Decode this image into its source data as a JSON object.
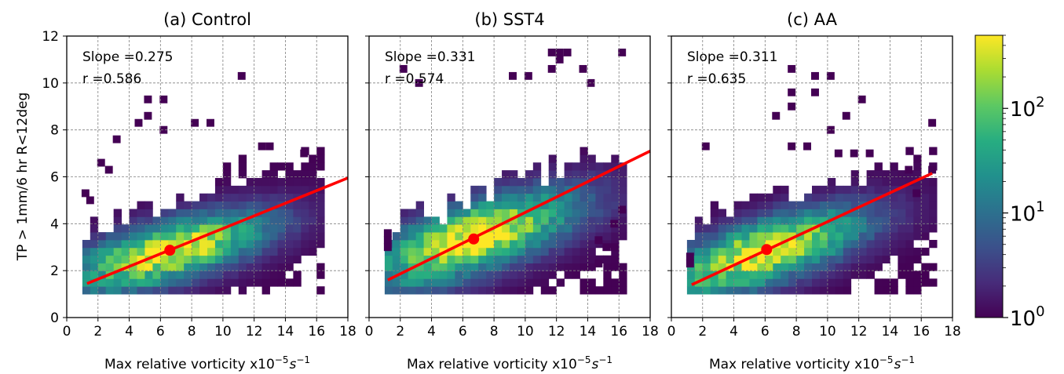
{
  "figure": {
    "ylabel": "TP > 1mm/6 hr R<12deg",
    "xlabel_main": "Max relative vorticity x10",
    "xlabel_exp": "−5",
    "xlabel_unit": "s",
    "xlabel_unit_exp": "−1",
    "colorbar": {
      "scale": "log",
      "range": [
        1,
        500
      ],
      "colormap": "viridis",
      "ticks": [
        {
          "base": "10",
          "exp": "0",
          "value": 1
        },
        {
          "base": "10",
          "exp": "1",
          "value": 10
        },
        {
          "base": "10",
          "exp": "2",
          "value": 100
        }
      ]
    }
  },
  "chart_data": [
    {
      "type": "heatmap",
      "title": "(a) Control",
      "slope_text": "Slope =0.275",
      "r_text": "r =0.586",
      "xlim": [
        0,
        18
      ],
      "ylim": [
        0,
        12
      ],
      "xticks": [
        "0",
        "2",
        "4",
        "6",
        "8",
        "10",
        "12",
        "14",
        "16",
        "18"
      ],
      "yticks": [
        "0",
        "2",
        "4",
        "6",
        "8",
        "10",
        "12"
      ],
      "grid": true,
      "x_range": [
        1.0,
        16.5
      ],
      "bin_width_x": 0.5,
      "bin_width_y": 0.33,
      "center": [
        6.6,
        2.85
      ],
      "spread": [
        3.3,
        0.85
      ],
      "upper_max": 7.0,
      "fit_line": {
        "x": [
          1.3,
          18.0
        ],
        "y": [
          1.45,
          5.95
        ],
        "color": "#ff0000"
      },
      "mean_point": {
        "x": 6.6,
        "y": 2.87
      },
      "outliers": [
        [
          11.2,
          10.3
        ],
        [
          5.2,
          9.3
        ],
        [
          6.2,
          9.3
        ],
        [
          5.2,
          8.6
        ],
        [
          4.6,
          8.3
        ],
        [
          8.2,
          8.3
        ],
        [
          9.2,
          8.3
        ],
        [
          6.2,
          8.0
        ],
        [
          3.2,
          7.6
        ],
        [
          12.5,
          7.3
        ],
        [
          13.0,
          7.3
        ],
        [
          15.2,
          7.0
        ],
        [
          2.7,
          6.3
        ],
        [
          2.2,
          6.6
        ],
        [
          1.2,
          5.3
        ],
        [
          1.5,
          5.0
        ]
      ]
    },
    {
      "type": "heatmap",
      "title": "(b) SST4",
      "slope_text": "Slope =0.331",
      "r_text": "r =0.574",
      "xlim": [
        0,
        18
      ],
      "ylim": [
        0,
        12
      ],
      "xticks": [
        "0",
        "2",
        "4",
        "6",
        "8",
        "10",
        "12",
        "14",
        "16",
        "18"
      ],
      "yticks": [
        "0",
        "2",
        "4",
        "6",
        "8",
        "10",
        "12"
      ],
      "grid": true,
      "x_range": [
        1.0,
        16.5
      ],
      "bin_width_x": 0.5,
      "bin_width_y": 0.33,
      "center": [
        6.7,
        3.4
      ],
      "spread": [
        3.5,
        1.0
      ],
      "upper_max": 8.3,
      "fit_line": {
        "x": [
          1.2,
          18.0
        ],
        "y": [
          1.6,
          7.1
        ],
        "color": "#ff0000"
      },
      "mean_point": {
        "x": 6.7,
        "y": 3.35
      },
      "outliers": [
        [
          11.7,
          11.3
        ],
        [
          12.2,
          11.3
        ],
        [
          12.7,
          11.3
        ],
        [
          16.2,
          11.3
        ],
        [
          12.2,
          11.0
        ],
        [
          11.7,
          10.6
        ],
        [
          13.7,
          10.6
        ],
        [
          2.2,
          10.6
        ],
        [
          9.2,
          10.3
        ],
        [
          10.2,
          10.3
        ],
        [
          14.2,
          10.0
        ],
        [
          3.2,
          10.0
        ],
        [
          1.2,
          3.6
        ],
        [
          1.2,
          3.3
        ],
        [
          1.2,
          3.0
        ],
        [
          14.7,
          2.3
        ],
        [
          16.2,
          4.6
        ],
        [
          15.7,
          4.0
        ],
        [
          14.7,
          3.3
        ],
        [
          15.2,
          3.0
        ],
        [
          15.7,
          3.0
        ]
      ]
    },
    {
      "type": "heatmap",
      "title": "(c) AA",
      "slope_text": "Slope =0.311",
      "r_text": "r =0.635",
      "xlim": [
        0,
        18
      ],
      "ylim": [
        0,
        12
      ],
      "xticks": [
        "0",
        "2",
        "4",
        "6",
        "8",
        "10",
        "12",
        "14",
        "16",
        "18"
      ],
      "yticks": [
        "0",
        "2",
        "4",
        "6",
        "8",
        "10",
        "12"
      ],
      "grid": true,
      "x_range": [
        1.0,
        16.8
      ],
      "bin_width_x": 0.5,
      "bin_width_y": 0.33,
      "center": [
        6.1,
        2.85
      ],
      "spread": [
        3.3,
        0.9
      ],
      "upper_max": 7.0,
      "fit_line": {
        "x": [
          1.3,
          16.7
        ],
        "y": [
          1.4,
          6.15
        ],
        "color": "#ff0000"
      },
      "mean_point": {
        "x": 6.1,
        "y": 2.9
      },
      "outliers": [
        [
          7.7,
          10.6
        ],
        [
          9.2,
          10.3
        ],
        [
          10.2,
          10.3
        ],
        [
          7.7,
          9.6
        ],
        [
          9.2,
          9.6
        ],
        [
          12.2,
          9.3
        ],
        [
          7.7,
          9.0
        ],
        [
          6.7,
          8.6
        ],
        [
          11.2,
          8.6
        ],
        [
          16.7,
          8.3
        ],
        [
          10.2,
          8.0
        ],
        [
          2.2,
          7.3
        ],
        [
          7.7,
          7.3
        ],
        [
          8.7,
          7.3
        ],
        [
          10.7,
          7.0
        ],
        [
          11.7,
          7.0
        ],
        [
          12.7,
          7.0
        ],
        [
          15.2,
          6.3
        ],
        [
          15.7,
          5.3
        ],
        [
          16.7,
          6.3
        ],
        [
          1.2,
          2.6
        ],
        [
          1.2,
          2.3
        ]
      ]
    }
  ]
}
